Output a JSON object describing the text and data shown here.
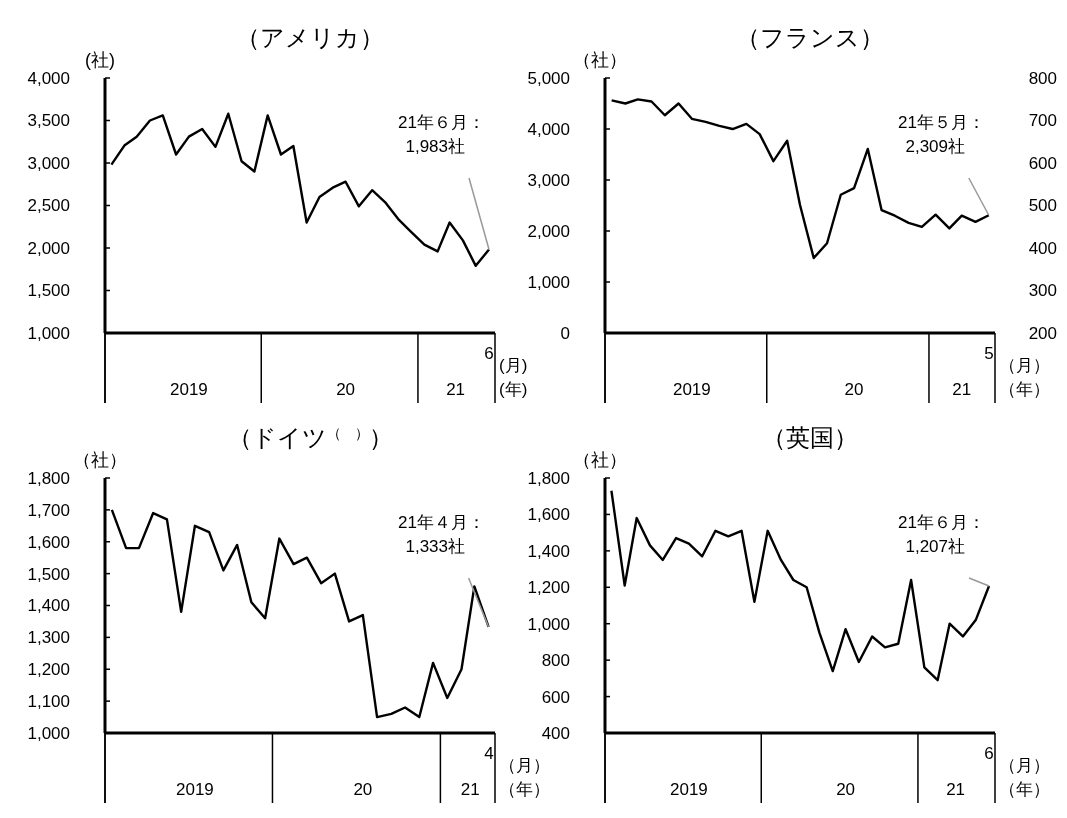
{
  "chart_data": [
    {
      "type": "line",
      "title": "（アメリカ）",
      "ylabel": "(社)",
      "xlabel": "(月)(年)",
      "x": [
        "2019-01",
        "2019-02",
        "2019-03",
        "2019-04",
        "2019-05",
        "2019-06",
        "2019-07",
        "2019-08",
        "2019-09",
        "2019-10",
        "2019-11",
        "2019-12",
        "2020-01",
        "2020-02",
        "2020-03",
        "2020-04",
        "2020-05",
        "2020-06",
        "2020-07",
        "2020-08",
        "2020-09",
        "2020-10",
        "2020-11",
        "2020-12",
        "2021-01",
        "2021-02",
        "2021-03",
        "2021-04",
        "2021-05",
        "2021-06"
      ],
      "series": [
        {
          "color": "#000000",
          "values": [
            2980,
            3210,
            3310,
            3500,
            3560,
            3100,
            3310,
            3400,
            3190,
            3580,
            3020,
            2900,
            3560,
            3100,
            3200,
            2300,
            2600,
            2710,
            2780,
            2490,
            2680,
            2540,
            2340,
            2190,
            2040,
            1960,
            2300,
            2090,
            1790,
            1983
          ]
        }
      ],
      "xlim": [
        "2018-12-17",
        "2021-06-15"
      ],
      "xticks": [
        {
          "value": "2019-07",
          "label": "2019"
        },
        {
          "value": "2020-07",
          "label": "20"
        },
        {
          "value": "2021-03-15",
          "label": "21"
        }
      ],
      "ylim": [
        1000,
        4000
      ],
      "yticks": [
        {
          "value": 1000,
          "label": "1,000"
        },
        {
          "value": 1500,
          "label": "1,500"
        },
        {
          "value": 2000,
          "label": "2,000"
        },
        {
          "value": 2500,
          "label": "2,500"
        },
        {
          "value": 3000,
          "label": "3,000"
        },
        {
          "value": 3500,
          "label": "3,500"
        },
        {
          "value": 4000,
          "label": "4,000"
        }
      ],
      "annotations": [
        {
          "text": "21年６月：\n1,983社",
          "x": "2021-06",
          "y": 1983
        },
        "6"
      ],
      "grid": false,
      "line_style": "solid",
      "marker": "none"
    },
    {
      "type": "line",
      "title": "（フランス）",
      "ylabel": "（社）",
      "xlabel": "（月）（年）",
      "x": [
        "2019-01",
        "2019-02",
        "2019-03",
        "2019-04",
        "2019-05",
        "2019-06",
        "2019-07",
        "2019-08",
        "2019-09",
        "2019-10",
        "2019-11",
        "2019-12",
        "2020-01",
        "2020-02",
        "2020-03",
        "2020-04",
        "2020-05",
        "2020-06",
        "2020-07",
        "2020-08",
        "2020-09",
        "2020-10",
        "2020-11",
        "2020-12",
        "2021-01",
        "2021-02",
        "2021-03",
        "2021-04",
        "2021-05"
      ],
      "series": [
        {
          "color": "#000000",
          "values": [
            4560,
            4500,
            4580,
            4540,
            4270,
            4500,
            4200,
            4140,
            4060,
            4000,
            4100,
            3900,
            3370,
            3770,
            2510,
            1470,
            1760,
            2710,
            2840,
            3610,
            2410,
            2300,
            2160,
            2080,
            2320,
            2050,
            2300,
            2180,
            2309
          ]
        }
      ],
      "xlim": [
        "2018-12-17",
        "2021-05-15"
      ],
      "xticks": [
        {
          "value": "2019-07",
          "label": "2019"
        },
        {
          "value": "2020-07",
          "label": "20"
        },
        {
          "value": "2021-03",
          "label": "21"
        }
      ],
      "ylim": [
        0,
        5000
      ],
      "yticks": [
        {
          "value": 0,
          "label": "0"
        },
        {
          "value": 1000,
          "label": "1,000"
        },
        {
          "value": 2000,
          "label": "2,000"
        },
        {
          "value": 3000,
          "label": "3,000"
        },
        {
          "value": 4000,
          "label": "4,000"
        },
        {
          "value": 5000,
          "label": "5,000"
        }
      ],
      "y2lim": [
        200,
        800
      ],
      "y2ticks": [
        200,
        300,
        400,
        500,
        600,
        700,
        800
      ],
      "annotations": [
        {
          "text": "21年５月：\n2,309社",
          "x": "2021-05",
          "y": 2309
        },
        "5"
      ],
      "grid": false,
      "line_style": "solid",
      "marker": "none"
    },
    {
      "type": "line",
      "title": "（ドイツ$^{（　）}$）",
      "ylabel": "（社）",
      "xlabel": "（月）（年）",
      "x": [
        "2019-01",
        "2019-02",
        "2019-03",
        "2019-04",
        "2019-05",
        "2019-06",
        "2019-07",
        "2019-08",
        "2019-09",
        "2019-10",
        "2019-11",
        "2019-12",
        "2020-01",
        "2020-02",
        "2020-03",
        "2020-04",
        "2020-05",
        "2020-06",
        "2020-07",
        "2020-08",
        "2020-09",
        "2020-10",
        "2020-11",
        "2020-12",
        "2021-01",
        "2021-02",
        "2021-03",
        "2021-04"
      ],
      "series": [
        {
          "color": "#000000",
          "values": [
            1700,
            1580,
            1580,
            1690,
            1670,
            1380,
            1650,
            1630,
            1510,
            1590,
            1410,
            1360,
            1610,
            1530,
            1550,
            1470,
            1500,
            1350,
            1370,
            1050,
            1060,
            1080,
            1050,
            1220,
            1110,
            1200,
            1460,
            1333
          ]
        }
      ],
      "xlim": [
        "2018-12-17",
        "2021-04-15"
      ],
      "xticks": [
        {
          "value": "2019-07",
          "label": "2019"
        },
        {
          "value": "2020-07",
          "label": "20"
        },
        {
          "value": "2021-02-20",
          "label": "21"
        }
      ],
      "ylim": [
        1000,
        1800
      ],
      "yticks": [
        {
          "value": 1000,
          "label": "1,000"
        },
        {
          "value": 1100,
          "label": "1,100"
        },
        {
          "value": 1200,
          "label": "1,200"
        },
        {
          "value": 1300,
          "label": "1,300"
        },
        {
          "value": 1400,
          "label": "1,400"
        },
        {
          "value": 1500,
          "label": "1,500"
        },
        {
          "value": 1600,
          "label": "1,600"
        },
        {
          "value": 1700,
          "label": "1,700"
        },
        {
          "value": 1800,
          "label": "1,800"
        }
      ],
      "annotations": [
        {
          "text": "21年４月：\n1,333社",
          "x": "2021-04",
          "y": 1333
        },
        "4"
      ],
      "grid": false,
      "line_style": "solid",
      "marker": "none"
    },
    {
      "type": "line",
      "title": "（英国）",
      "ylabel": "（社）",
      "xlabel": "（月）（年）",
      "x": [
        "2019-01",
        "2019-02",
        "2019-03",
        "2019-04",
        "2019-05",
        "2019-06",
        "2019-07",
        "2019-08",
        "2019-09",
        "2019-10",
        "2019-11",
        "2019-12",
        "2020-01",
        "2020-02",
        "2020-03",
        "2020-04",
        "2020-05",
        "2020-06",
        "2020-07",
        "2020-08",
        "2020-09",
        "2020-10",
        "2020-11",
        "2020-12",
        "2021-01",
        "2021-02",
        "2021-03",
        "2021-04",
        "2021-05",
        "2021-06"
      ],
      "series": [
        {
          "color": "#000000",
          "values": [
            1730,
            1210,
            1580,
            1430,
            1350,
            1470,
            1440,
            1370,
            1510,
            1480,
            1510,
            1120,
            1510,
            1350,
            1240,
            1200,
            950,
            740,
            970,
            790,
            930,
            870,
            890,
            1240,
            760,
            690,
            1000,
            930,
            1020,
            1207
          ]
        }
      ],
      "xlim": [
        "2018-12-17",
        "2021-06-15"
      ],
      "xticks": [
        {
          "value": "2019-07",
          "label": "2019"
        },
        {
          "value": "2020-07",
          "label": "20"
        },
        {
          "value": "2021-03-15",
          "label": "21"
        }
      ],
      "ylim": [
        400,
        1800
      ],
      "yticks": [
        {
          "value": 400,
          "label": "400"
        },
        {
          "value": 600,
          "label": "600"
        },
        {
          "value": 800,
          "label": "800"
        },
        {
          "value": 1000,
          "label": "1,000"
        },
        {
          "value": 1200,
          "label": "1,200"
        },
        {
          "value": 1400,
          "label": "1,400"
        },
        {
          "value": 1600,
          "label": "1,600"
        },
        {
          "value": 1800,
          "label": "1,800"
        }
      ],
      "annotations": [
        {
          "text": "21年６月：\n1,207社",
          "x": "2021-06",
          "y": 1207
        },
        "6"
      ],
      "grid": false,
      "line_style": "solid",
      "marker": "none"
    }
  ]
}
